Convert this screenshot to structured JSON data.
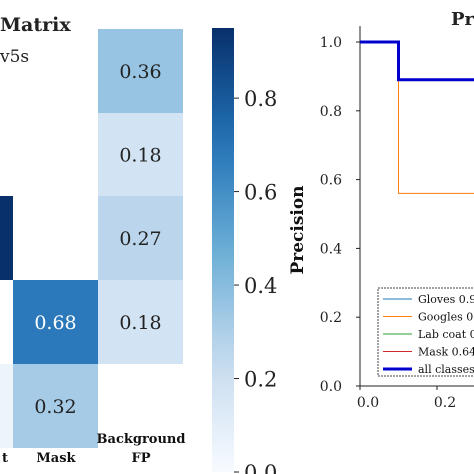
{
  "chart_data": [
    {
      "type": "heatmap",
      "title_fragment": "Matrix",
      "subtitle_fragment": "v5s",
      "columns": [
        "t",
        "Mask",
        "Background FP"
      ],
      "cells": [
        {
          "col": 2,
          "row": 0,
          "value": 0.36
        },
        {
          "col": 2,
          "row": 1,
          "value": 0.18
        },
        {
          "col": 2,
          "row": 2,
          "value": 0.27
        },
        {
          "col": 2,
          "row": 3,
          "value": 0.18
        },
        {
          "col": 1,
          "row": 3,
          "value": 0.68
        },
        {
          "col": 1,
          "row": 4,
          "value": 0.32
        },
        {
          "col": 0,
          "row": 2,
          "value": 0.95
        },
        {
          "col": 0,
          "row": 4,
          "value": 0.05
        }
      ],
      "cell_labels": [
        "0.36",
        "0.18",
        "0.27",
        "0.18",
        "0.68",
        "0.32"
      ],
      "colorbar": {
        "min": 0.0,
        "max": 0.95,
        "ticks": [
          0.0,
          0.2,
          0.4,
          0.6,
          0.8
        ],
        "tick_labels": [
          "0.0",
          "0.2",
          "0.4",
          "0.6",
          "0.8"
        ],
        "colormap": "Blues"
      }
    },
    {
      "type": "line",
      "title_fragment": "Pr",
      "ylabel": "Precision",
      "xlim": [
        0.0,
        0.3
      ],
      "ylim": [
        0.0,
        1.0
      ],
      "x_ticks": [
        "0.0",
        "0.2"
      ],
      "y_ticks": [
        "0.0",
        "0.2",
        "0.4",
        "0.6",
        "0.8",
        "1.0"
      ],
      "legend_placement": "lower-right",
      "series": [
        {
          "name": "Gloves 0.9",
          "color": "#1f77b4",
          "width": 1,
          "points": [
            [
              0.0,
              1.0
            ],
            [
              0.1,
              1.0
            ],
            [
              0.1,
              0.89
            ],
            [
              0.3,
              0.89
            ]
          ]
        },
        {
          "name": "Googles 0",
          "color": "#ff7f0e",
          "width": 1,
          "points": [
            [
              0.0,
              1.0
            ],
            [
              0.1,
              1.0
            ],
            [
              0.1,
              0.56
            ],
            [
              0.3,
              0.56
            ]
          ]
        },
        {
          "name": "Lab coat 0",
          "color": "#2ca02c",
          "width": 1,
          "points": []
        },
        {
          "name": "Mask 0.64",
          "color": "#d62728",
          "width": 1,
          "points": []
        },
        {
          "name": "all classes",
          "color": "#0000cc",
          "width": 3,
          "points": [
            [
              0.0,
              1.0
            ],
            [
              0.1,
              1.0
            ],
            [
              0.1,
              0.89
            ],
            [
              0.3,
              0.89
            ]
          ]
        }
      ]
    }
  ]
}
